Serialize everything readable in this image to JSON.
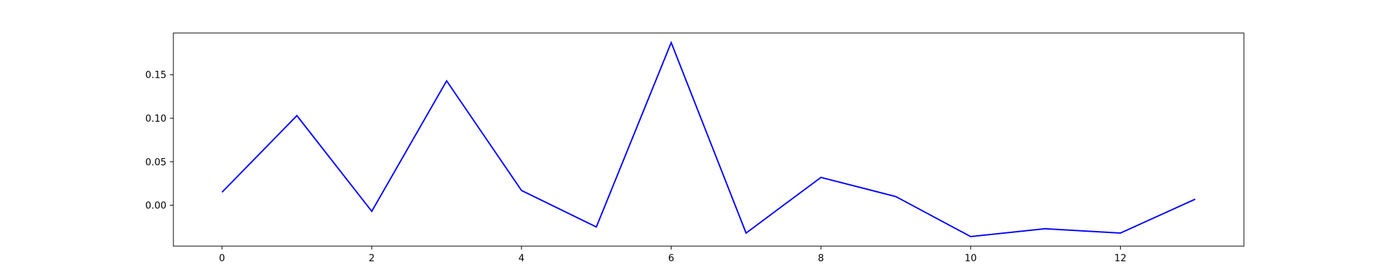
{
  "chart_data": {
    "type": "line",
    "x": [
      0,
      1,
      2,
      3,
      4,
      5,
      6,
      7,
      8,
      9,
      10,
      11,
      12,
      13
    ],
    "series": [
      {
        "values": [
          0.015,
          0.103,
          -0.007,
          0.143,
          0.017,
          -0.025,
          0.187,
          -0.032,
          0.032,
          0.01,
          -0.036,
          -0.027,
          -0.032,
          0.007
        ],
        "color": "#0000ff"
      }
    ],
    "xlim": [
      -0.65,
      13.65
    ],
    "ylim": [
      -0.047,
      0.198
    ],
    "xticks": [
      0,
      2,
      4,
      6,
      8,
      10,
      12
    ],
    "xtick_labels": [
      "0",
      "2",
      "4",
      "6",
      "8",
      "10",
      "12"
    ],
    "yticks": [
      0.0,
      0.05,
      0.1,
      0.15
    ],
    "ytick_labels": [
      "0.00",
      "0.05",
      "0.10",
      "0.15"
    ],
    "grid": false,
    "title": "",
    "xlabel": "",
    "ylabel": ""
  }
}
